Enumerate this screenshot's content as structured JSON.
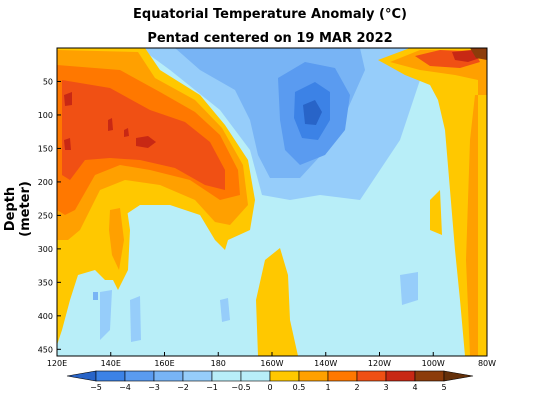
{
  "chart_data": {
    "type": "heatmap",
    "title": "Equatorial Temperature Anomaly (°C)",
    "subtitle": "Pentad centered on 19 MAR 2022",
    "xlabel": "",
    "ylabel": "Depth (meter)",
    "x_range_deg_east": [
      120,
      280
    ],
    "y_range_m": [
      0,
      460
    ],
    "y_inverted": true,
    "x_ticks": [
      {
        "value": 120,
        "label": "120E"
      },
      {
        "value": 140,
        "label": "140E"
      },
      {
        "value": 160,
        "label": "160E"
      },
      {
        "value": 180,
        "label": "180"
      },
      {
        "value": 200,
        "label": "160W"
      },
      {
        "value": 220,
        "label": "140W"
      },
      {
        "value": 240,
        "label": "120W"
      },
      {
        "value": 260,
        "label": "100W"
      },
      {
        "value": 280,
        "label": "80W"
      }
    ],
    "y_ticks": [
      50,
      100,
      150,
      200,
      250,
      300,
      350,
      400,
      450
    ],
    "colorbar": {
      "levels": [
        -5,
        -4,
        -3,
        -2,
        -1,
        -0.5,
        0,
        0.5,
        1,
        2,
        3,
        4,
        5
      ],
      "labels": [
        "−5",
        "−4",
        "−3",
        "−2",
        "−1",
        "−0.5",
        "0",
        "0.5",
        "1",
        "2",
        "3",
        "4",
        "5"
      ],
      "colors": [
        "#2864c8",
        "#3c82e6",
        "#5a9bf0",
        "#78b4f5",
        "#96cdfa",
        "#b8eef8",
        "#b8eef8",
        "#ffc800",
        "#ffa000",
        "#ff7800",
        "#f05014",
        "#c82814",
        "#8c3c0a",
        "#64300a"
      ]
    },
    "features": [
      {
        "name": "warm-west-pacific",
        "anomaly_max": 3,
        "x": [
          120,
          178
        ],
        "depth": [
          50,
          250
        ]
      },
      {
        "name": "cold-central-pacific",
        "anomaly_min": -2,
        "x": [
          205,
          225
        ],
        "depth": [
          80,
          160
        ]
      },
      {
        "name": "warm-far-east-surface",
        "anomaly_max": 4,
        "x": [
          260,
          280
        ],
        "depth": [
          0,
          40
        ]
      },
      {
        "name": "warm-deep-east",
        "anomaly_max": 1,
        "x": [
          192,
          205
        ],
        "depth": [
          290,
          460
        ]
      }
    ]
  }
}
